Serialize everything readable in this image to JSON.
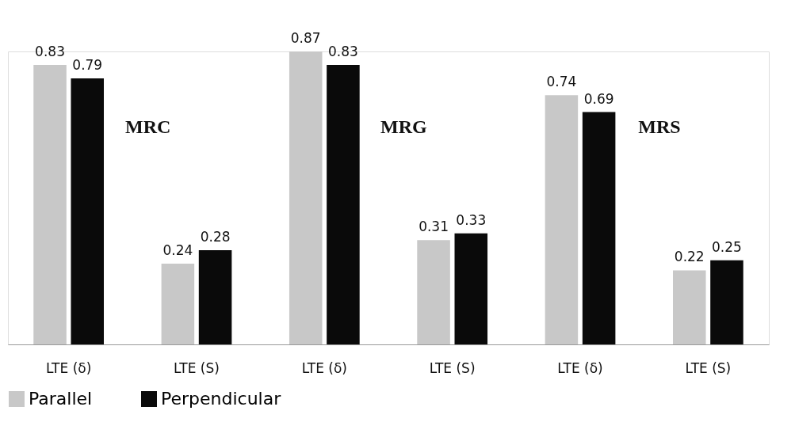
{
  "chart_data": {
    "type": "bar",
    "categories": [
      "LTE (δ)",
      "LTE (S)",
      "LTE (δ)",
      "LTE (S)",
      "LTE (δ)",
      "LTE (S)"
    ],
    "series": [
      {
        "name": "Parallel",
        "color": "#c8c8c8",
        "values": [
          0.83,
          0.24,
          0.87,
          0.31,
          0.74,
          0.22
        ]
      },
      {
        "name": "Perpendicular",
        "color": "#0a0a0a",
        "values": [
          0.79,
          0.28,
          0.83,
          0.33,
          0.69,
          0.25
        ]
      }
    ],
    "annotations": [
      "MRC",
      "MRG",
      "MRS"
    ],
    "data_labels": true,
    "legend": "bottom",
    "grid": false
  }
}
